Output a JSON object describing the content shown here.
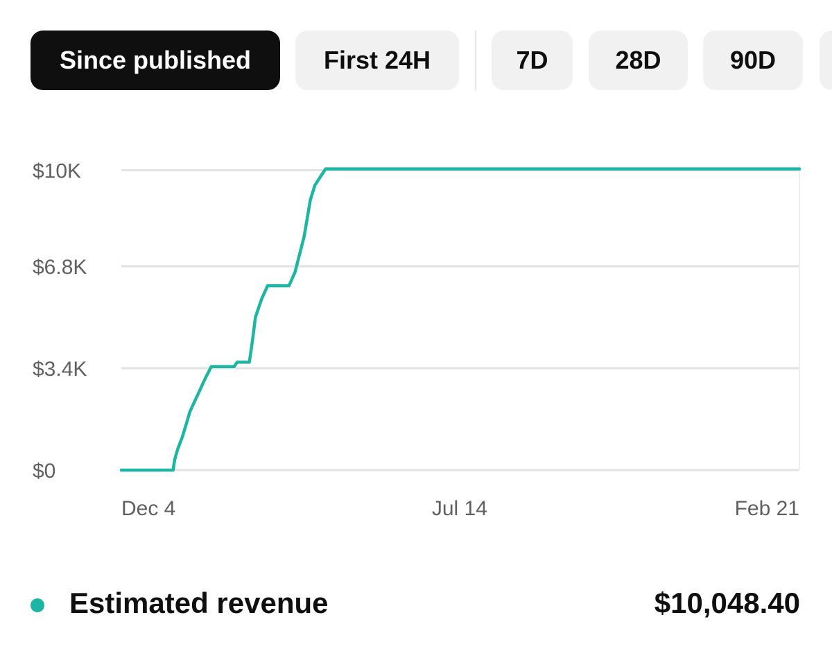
{
  "filters": {
    "items": [
      {
        "label": "Since published",
        "active": true
      },
      {
        "label": "First 24H",
        "active": false
      },
      {
        "label": "7D",
        "active": false
      },
      {
        "label": "28D",
        "active": false
      },
      {
        "label": "90D",
        "active": false
      }
    ]
  },
  "colors": {
    "series": "#1fb5a3",
    "grid": "#e2e2e2",
    "chip_bg": "#f1f1f1",
    "chip_active_bg": "#0f0f0f"
  },
  "chart_data": {
    "type": "line",
    "title": "",
    "xlabel": "",
    "ylabel": "",
    "ylim": [
      0,
      10200
    ],
    "xlim": [
      0,
      445
    ],
    "yticks": [
      {
        "value": 0,
        "label": "$0"
      },
      {
        "value": 3400,
        "label": "$3.4K"
      },
      {
        "value": 6800,
        "label": "$6.8K"
      },
      {
        "value": 10000,
        "label": "$10K"
      }
    ],
    "xticks": [
      {
        "value": 0,
        "label": "Dec 4"
      },
      {
        "value": 222,
        "label": "Jul 14"
      },
      {
        "value": 445,
        "label": "Feb 21"
      }
    ],
    "series": [
      {
        "name": "Estimated revenue",
        "x": [
          0,
          34,
          35,
          37,
          40,
          43,
          45,
          50,
          55,
          59,
          63,
          74,
          76,
          84,
          86,
          88,
          92,
          96,
          105,
          110,
          114,
          120,
          124,
          127,
          134,
          445
        ],
        "y": [
          0,
          0,
          350,
          700,
          1100,
          1600,
          1950,
          2500,
          3050,
          3450,
          3450,
          3450,
          3600,
          3600,
          4300,
          5100,
          5700,
          6150,
          6150,
          6150,
          6600,
          7800,
          9000,
          9500,
          10048,
          10048
        ]
      }
    ]
  },
  "legend": {
    "label": "Estimated revenue",
    "value": "$10,048.40"
  }
}
